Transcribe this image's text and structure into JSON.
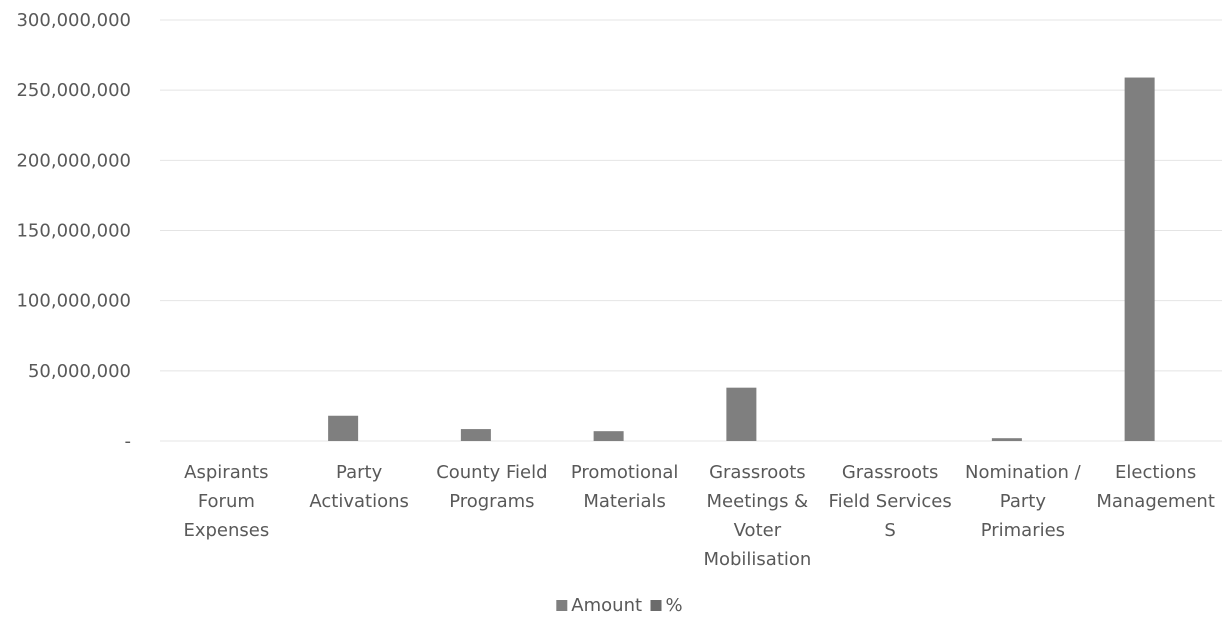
{
  "chart_data": {
    "type": "bar",
    "title": "",
    "xlabel": "",
    "ylabel": "",
    "categories": [
      [
        "Aspirants",
        "Forum",
        "Expenses"
      ],
      [
        "Party",
        "Activations"
      ],
      [
        "County Field",
        "Programs"
      ],
      [
        "Promotional",
        "Materials"
      ],
      [
        "Grassroots",
        "Meetings &",
        "Voter",
        "Mobilisation"
      ],
      [
        "Grassroots",
        "Field Services",
        "S"
      ],
      [
        "Nomination /",
        "Party",
        "Primaries"
      ],
      [
        "Elections",
        "Management"
      ]
    ],
    "series": [
      {
        "name": "Amount",
        "color": "#7f7f7f",
        "values": [
          0,
          18000000,
          8500000,
          7000000,
          38000000,
          0,
          2000000,
          259000000
        ]
      },
      {
        "name": "%",
        "color": "#6b6b6b",
        "values": [
          0,
          0,
          0,
          0,
          0,
          0,
          0,
          0
        ]
      }
    ],
    "ylim": [
      0,
      300000000
    ],
    "yticks": [
      0,
      50000000,
      100000000,
      150000000,
      200000000,
      250000000,
      300000000
    ],
    "ytick_labels": [
      "-",
      "50,000,000",
      "100,000,000",
      "150,000,000",
      "200,000,000",
      "250,000,000",
      "300,000,000"
    ],
    "grid": true,
    "legend_position": "bottom"
  }
}
